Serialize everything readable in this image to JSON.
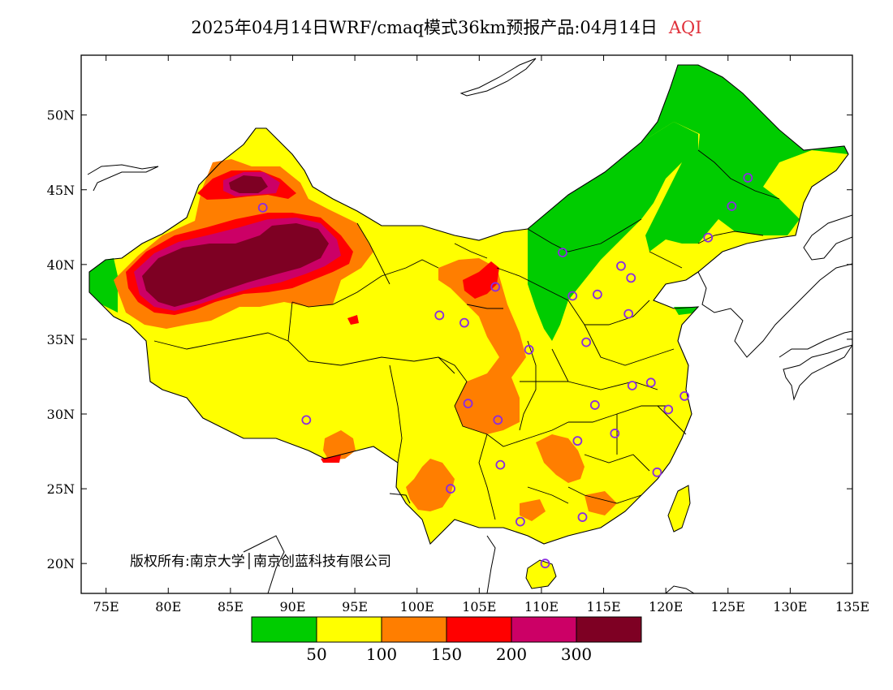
{
  "header": {
    "title": "2025年04月14日WRF/cmaq模式36km预报产品:04月14日",
    "variable": "AQI"
  },
  "map": {
    "lon_range": [
      73,
      135
    ],
    "lat_range": [
      18,
      54
    ],
    "lon_ticks": [
      75,
      80,
      85,
      90,
      95,
      100,
      105,
      110,
      115,
      120,
      125,
      130,
      135
    ],
    "lon_labels": [
      "75E",
      "80E",
      "85E",
      "90E",
      "95E",
      "100E",
      "105E",
      "110E",
      "115E",
      "120E",
      "125E",
      "130E",
      "135E"
    ],
    "lat_ticks": [
      20,
      25,
      30,
      35,
      40,
      45,
      50
    ],
    "lat_labels": [
      "20N",
      "25N",
      "30N",
      "35N",
      "40N",
      "45N",
      "50N"
    ],
    "copyright": "版权所有:南京大学│南京创蓝科技有限公司",
    "stations_lonlat": [
      [
        87.6,
        43.8
      ],
      [
        101.8,
        36.6
      ],
      [
        103.8,
        36.1
      ],
      [
        106.3,
        38.5
      ],
      [
        109.0,
        34.3
      ],
      [
        111.7,
        40.8
      ],
      [
        112.5,
        37.9
      ],
      [
        114.5,
        38.0
      ],
      [
        116.4,
        39.9
      ],
      [
        117.2,
        39.1
      ],
      [
        113.6,
        34.8
      ],
      [
        117.0,
        36.7
      ],
      [
        123.4,
        41.8
      ],
      [
        125.3,
        43.9
      ],
      [
        126.6,
        45.8
      ],
      [
        104.1,
        30.7
      ],
      [
        106.5,
        29.6
      ],
      [
        91.1,
        29.6
      ],
      [
        102.7,
        25.0
      ],
      [
        106.7,
        26.6
      ],
      [
        108.3,
        22.8
      ],
      [
        113.3,
        23.1
      ],
      [
        110.3,
        20.0
      ],
      [
        112.9,
        28.2
      ],
      [
        114.3,
        30.6
      ],
      [
        115.9,
        28.7
      ],
      [
        117.3,
        31.9
      ],
      [
        118.8,
        32.1
      ],
      [
        120.2,
        30.3
      ],
      [
        121.5,
        31.2
      ],
      [
        119.3,
        26.1
      ]
    ]
  },
  "legend": {
    "colors": [
      "#00cc00",
      "#ffff00",
      "#ff7e00",
      "#ff0000",
      "#cc0066",
      "#7e0023"
    ],
    "labels": [
      "50",
      "100",
      "150",
      "200",
      "300"
    ]
  }
}
